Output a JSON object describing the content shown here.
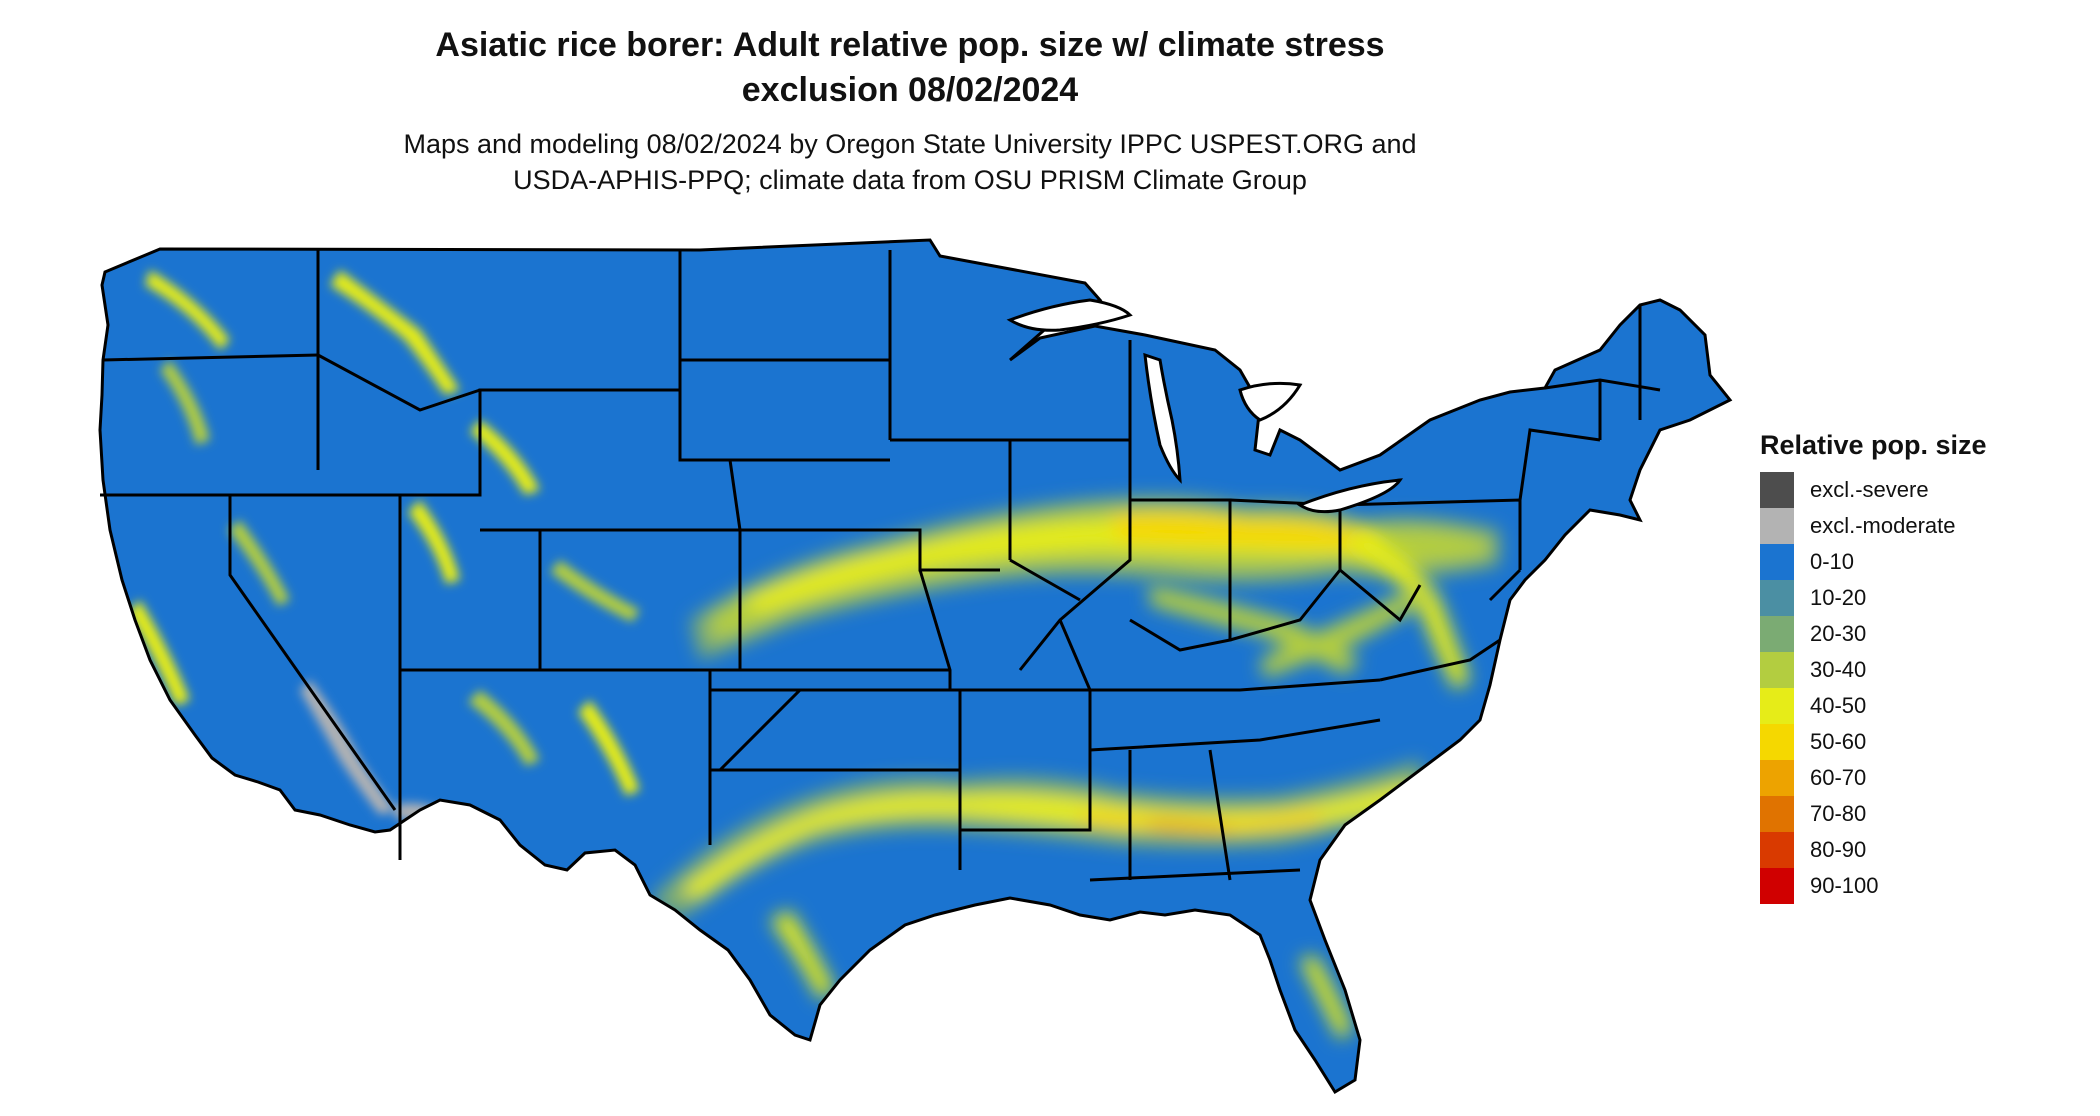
{
  "title": {
    "line1": "Asiatic rice borer: Adult relative pop. size w/ climate stress",
    "line2": "exclusion 08/02/2024"
  },
  "subtitle": {
    "line1": "Maps and modeling 08/02/2024 by Oregon State University IPPC USPEST.ORG and",
    "line2": "USDA-APHIS-PPQ; climate data from OSU PRISM Climate Group"
  },
  "map": {
    "base_color": "#1b74d0",
    "border_color": "#000000",
    "hotspot_belts": [
      {
        "region": "great plains / corn belt",
        "classes": [
          "20-30",
          "30-40",
          "40-50",
          "50-60"
        ]
      },
      {
        "region": "ohio valley / mid-atlantic",
        "classes": [
          "20-30",
          "30-40",
          "40-50",
          "50-60"
        ]
      },
      {
        "region": "southern plains / gulf coast",
        "classes": [
          "20-30",
          "30-40",
          "40-50",
          "50-60",
          "60-70"
        ]
      },
      {
        "region": "western mountains",
        "classes": [
          "20-30",
          "30-40",
          "40-50"
        ]
      },
      {
        "region": "southwest desert",
        "classes": [
          "excl.-moderate"
        ]
      }
    ]
  },
  "legend": {
    "title": "Relative pop. size",
    "items": [
      {
        "label": "excl.-severe",
        "color": "#4d4d4d"
      },
      {
        "label": "excl.-moderate",
        "color": "#b3b3b3"
      },
      {
        "label": "0-10",
        "color": "#1b74d0"
      },
      {
        "label": "10-20",
        "color": "#4b8fa3"
      },
      {
        "label": "20-30",
        "color": "#7bab73"
      },
      {
        "label": "30-40",
        "color": "#b3cd40"
      },
      {
        "label": "40-50",
        "color": "#e6ec18"
      },
      {
        "label": "50-60",
        "color": "#f5d800"
      },
      {
        "label": "60-70",
        "color": "#eda300"
      },
      {
        "label": "70-80",
        "color": "#e07300"
      },
      {
        "label": "80-90",
        "color": "#d93a00"
      },
      {
        "label": "90-100",
        "color": "#d00000"
      }
    ]
  }
}
